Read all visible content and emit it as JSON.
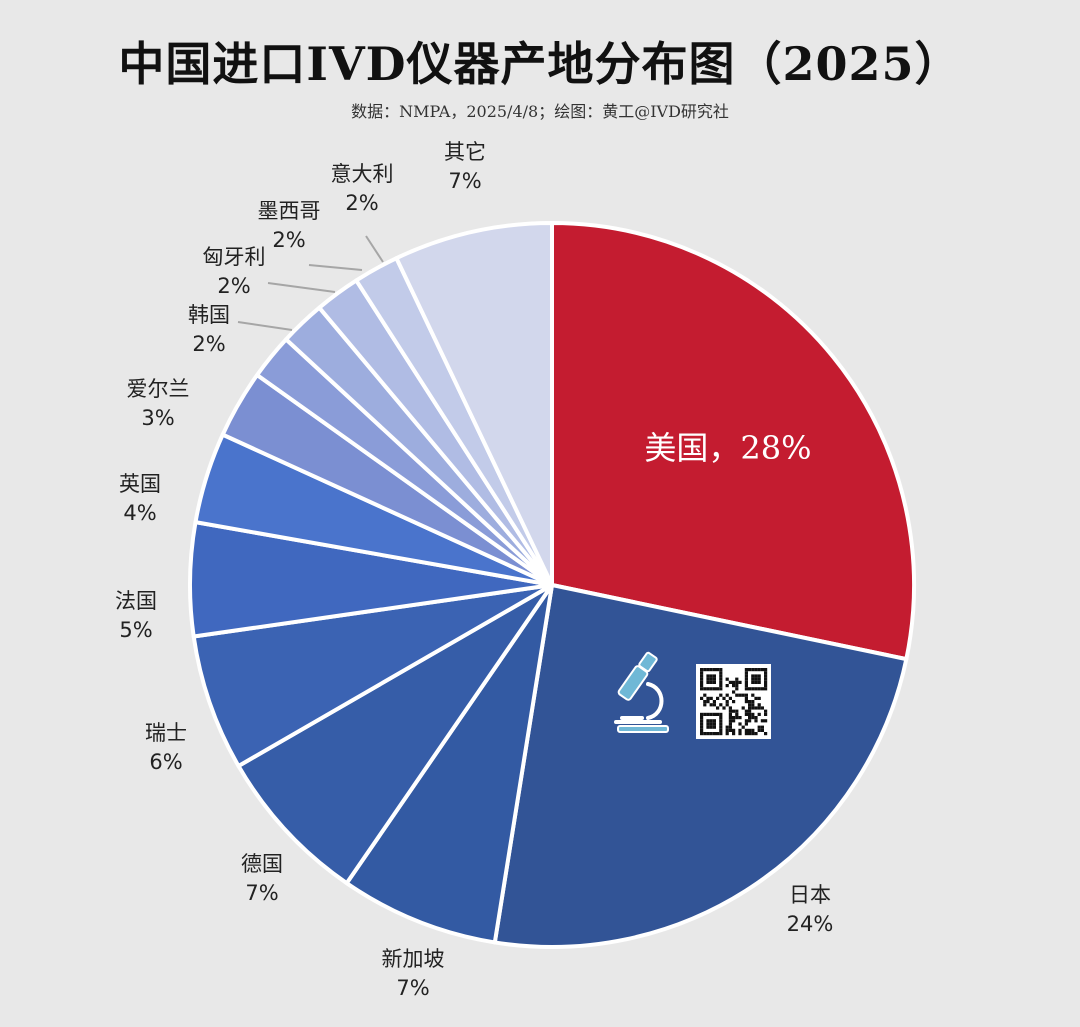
{
  "title": "中国进口IVD仪器产地分布图（2025）",
  "subtitle": "数据：NMPA，2025/4/8；绘图：黄工@IVD研究社",
  "chart_data": {
    "type": "pie",
    "title": "中国进口IVD仪器产地分布图（2025）",
    "slices": [
      {
        "name": "美国",
        "value": 28,
        "label": "28%",
        "color": "#c41c30"
      },
      {
        "name": "日本",
        "value": 24,
        "label": "24%",
        "color": "#325496"
      },
      {
        "name": "新加坡",
        "value": 7,
        "label": "7%",
        "color": "#335aa3"
      },
      {
        "name": "德国",
        "value": 7,
        "label": "7%",
        "color": "#365da8"
      },
      {
        "name": "瑞士",
        "value": 6,
        "label": "6%",
        "color": "#3b63b3"
      },
      {
        "name": "法国",
        "value": 5,
        "label": "5%",
        "color": "#4068bf"
      },
      {
        "name": "英国",
        "value": 4,
        "label": "4%",
        "color": "#4a74cc"
      },
      {
        "name": "爱尔兰",
        "value": 3,
        "label": "3%",
        "color": "#7b8fd2"
      },
      {
        "name": "韩国",
        "value": 2,
        "label": "2%",
        "color": "#8a9cd8"
      },
      {
        "name": "匈牙利",
        "value": 2,
        "label": "2%",
        "color": "#9dadde"
      },
      {
        "name": "墨西哥",
        "value": 2,
        "label": "2%",
        "color": "#b0bce4"
      },
      {
        "name": "意大利",
        "value": 2,
        "label": "2%",
        "color": "#c2cbe9"
      },
      {
        "name": "其它",
        "value": 7,
        "label": "7%",
        "color": "#d2d7ec"
      }
    ],
    "inner_label": "美国，28%"
  },
  "icons": {
    "microscope": "microscope-icon",
    "qr": "qr-code"
  }
}
